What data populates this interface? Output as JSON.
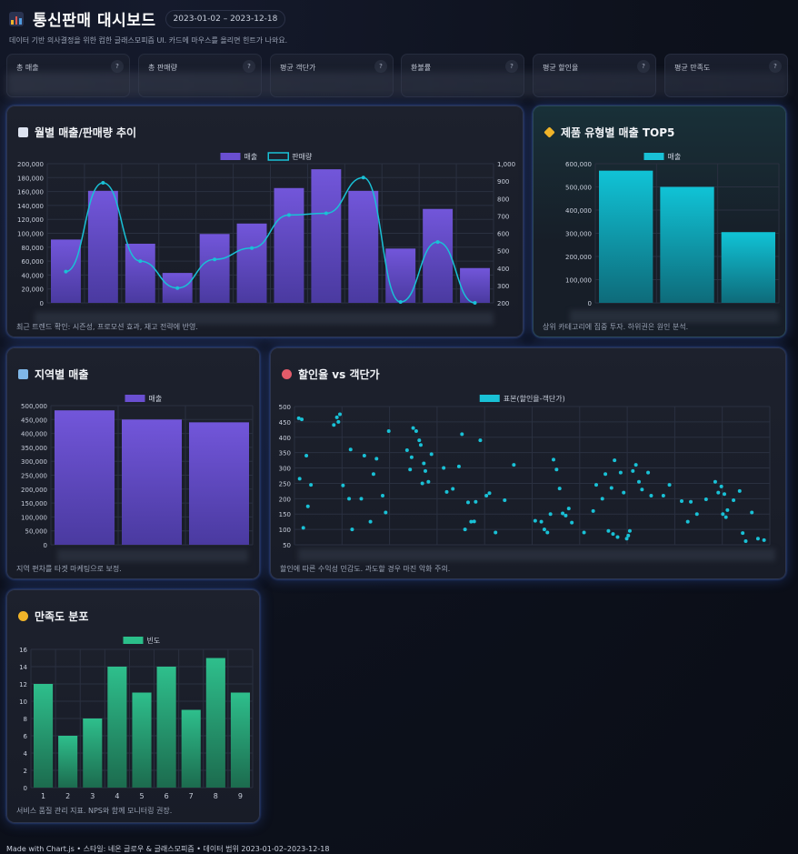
{
  "header": {
    "title": "통신판매 대시보드",
    "date_range": "2023-01-02 – 2023-12-18",
    "subtitle": "데이터 기반 의사결정을 위한 컴한 글래스모피즘 UI. 카드에 마우스를 올리면 힌트가 나와요."
  },
  "kpis": [
    {
      "label": "총 매출",
      "help": "?"
    },
    {
      "label": "총 판매량",
      "help": "?"
    },
    {
      "label": "평균 객단가",
      "help": "?"
    },
    {
      "label": "환불률",
      "help": "?"
    },
    {
      "label": "평균 할인율",
      "help": "?"
    },
    {
      "label": "평균 만족도",
      "help": "?"
    }
  ],
  "colors": {
    "purple": "#6a4fd1",
    "cyan": "#19c1d6",
    "green": "#2bbf8a",
    "accent_glow": "#3f6ee6"
  },
  "cards": {
    "monthly": {
      "title": "월별 매출/판매량 추이",
      "icon": "chart-increasing-icon",
      "note": "최근 트렌드 확인: 시즌성, 프로모션 효과, 재고 전략에 반영."
    },
    "top5": {
      "title": "제품 유형별 매출 TOP5",
      "icon": "tag-icon",
      "note": "상위 카테고리에 집중 투자. 하위권은 원인 분석."
    },
    "region": {
      "title": "지역별 매출",
      "icon": "map-icon",
      "note": "지역 편차를 타겟 마케팅으로 보정."
    },
    "scatter": {
      "title": "할인율 vs 객단가",
      "icon": "target-icon",
      "note": "할인에 따른 수익성 민감도. 과도할 경우 마진 악화 주의."
    },
    "satisfaction": {
      "title": "만족도 분포",
      "icon": "smile-icon",
      "note": "서비스 품질 관리 지표. NPS와 함께 모니터링 권장."
    }
  },
  "footer": "Made with Chart.js • 스타일: 네온 글로우 & 글래스모피즘 • 데이터 범위 2023-01-02–2023-12-18",
  "chart_data": [
    {
      "id": "monthly",
      "type": "bar+line",
      "series": [
        {
          "name": "매출",
          "type": "bar",
          "axis": "left",
          "values": [
            91000,
            161000,
            85000,
            43000,
            99000,
            114000,
            165000,
            192000,
            161000,
            78000,
            135000,
            50000
          ]
        },
        {
          "name": "판매량",
          "type": "line",
          "axis": "right",
          "values": [
            380,
            890,
            440,
            285,
            450,
            515,
            705,
            715,
            920,
            205,
            550,
            200
          ]
        }
      ],
      "ylim": [
        0,
        200000
      ],
      "yticks": [
        0,
        20000,
        40000,
        60000,
        80000,
        100000,
        120000,
        140000,
        160000,
        180000,
        200000
      ],
      "y2lim": [
        200,
        1000
      ],
      "y2ticks": [
        200,
        300,
        400,
        500,
        600,
        700,
        800,
        900,
        1000
      ],
      "legend": "top"
    },
    {
      "id": "top5",
      "type": "bar",
      "series": [
        {
          "name": "매출",
          "values": [
            570000,
            500000,
            305000
          ]
        }
      ],
      "ylim": [
        0,
        600000
      ],
      "yticks": [
        0,
        100000,
        200000,
        300000,
        400000,
        500000,
        600000
      ],
      "legend": "top"
    },
    {
      "id": "region",
      "type": "bar",
      "series": [
        {
          "name": "매출",
          "values": [
            483000,
            450000,
            440000
          ]
        }
      ],
      "ylim": [
        0,
        500000
      ],
      "yticks": [
        0,
        50000,
        100000,
        150000,
        200000,
        250000,
        300000,
        350000,
        400000,
        450000,
        500000
      ],
      "legend": "top"
    },
    {
      "id": "scatter",
      "type": "scatter",
      "series": [
        {
          "name": "표본(할인율-객단가)",
          "points": [
            [
              0.5,
              462
            ],
            [
              1.5,
              458
            ],
            [
              0.8,
              265
            ],
            [
              2,
              105
            ],
            [
              3,
              340
            ],
            [
              3.5,
              175
            ],
            [
              4.5,
              245
            ],
            [
              12,
              440
            ],
            [
              13,
              465
            ],
            [
              13.5,
              450
            ],
            [
              14,
              475
            ],
            [
              15,
              243
            ],
            [
              17,
              200
            ],
            [
              17.5,
              360
            ],
            [
              18,
              100
            ],
            [
              21,
              200
            ],
            [
              22,
              340
            ],
            [
              24,
              125
            ],
            [
              25,
              280
            ],
            [
              26,
              330
            ],
            [
              28,
              210
            ],
            [
              29,
              155
            ],
            [
              30,
              420
            ],
            [
              36,
              358
            ],
            [
              37,
              295
            ],
            [
              37.5,
              335
            ],
            [
              38,
              430
            ],
            [
              39,
              420
            ],
            [
              40,
              390
            ],
            [
              40.5,
              375
            ],
            [
              41,
              250
            ],
            [
              41.5,
              315
            ],
            [
              42,
              290
            ],
            [
              43,
              255
            ],
            [
              44,
              345
            ],
            [
              48,
              300
            ],
            [
              49,
              222
            ],
            [
              51,
              232
            ],
            [
              53,
              305
            ],
            [
              54,
              410
            ],
            [
              55,
              100
            ],
            [
              56,
              188
            ],
            [
              57,
              125
            ],
            [
              58,
              126
            ],
            [
              58.5,
              190
            ],
            [
              60,
              390
            ],
            [
              62,
              210
            ],
            [
              63,
              218
            ],
            [
              65,
              90
            ],
            [
              68,
              195
            ],
            [
              71,
              310
            ],
            [
              78,
              128
            ],
            [
              80,
              125
            ],
            [
              81,
              100
            ],
            [
              82,
              90
            ],
            [
              83,
              150
            ],
            [
              84,
              327
            ],
            [
              85,
              295
            ],
            [
              86,
              233
            ],
            [
              87,
              152
            ],
            [
              88,
              145
            ],
            [
              89,
              168
            ],
            [
              90,
              122
            ],
            [
              94,
              90
            ],
            [
              97,
              160
            ],
            [
              98,
              245
            ],
            [
              100,
              200
            ],
            [
              101,
              280
            ],
            [
              102,
              95
            ],
            [
              103,
              235
            ],
            [
              103.5,
              85
            ],
            [
              104,
              325
            ],
            [
              105,
              75
            ],
            [
              106,
              285
            ],
            [
              107,
              220
            ],
            [
              108,
              70
            ],
            [
              108.5,
              80
            ],
            [
              109,
              95
            ],
            [
              110,
              290
            ],
            [
              111,
              310
            ],
            [
              112,
              255
            ],
            [
              113,
              230
            ],
            [
              115,
              285
            ],
            [
              116,
              210
            ],
            [
              120,
              210
            ],
            [
              122,
              245
            ],
            [
              126,
              192
            ],
            [
              128,
              125
            ],
            [
              129,
              190
            ],
            [
              131,
              150
            ],
            [
              134,
              198
            ],
            [
              137,
              255
            ],
            [
              138,
              220
            ],
            [
              139,
              240
            ],
            [
              139.5,
              150
            ],
            [
              140,
              215
            ],
            [
              140.5,
              140
            ],
            [
              141,
              163
            ],
            [
              143,
              195
            ],
            [
              145,
              225
            ],
            [
              146,
              88
            ],
            [
              147,
              62
            ],
            [
              149,
              155
            ],
            [
              151,
              70
            ],
            [
              153,
              65
            ]
          ]
        }
      ],
      "ylim": [
        50,
        500
      ],
      "yticks": [
        50,
        100,
        150,
        200,
        250,
        300,
        350,
        400,
        450,
        500
      ],
      "legend": "top"
    },
    {
      "id": "satisfaction",
      "type": "bar",
      "categories": [
        "1",
        "2",
        "3",
        "4",
        "5",
        "6",
        "7",
        "8",
        "9"
      ],
      "series": [
        {
          "name": "빈도",
          "values": [
            12,
            6,
            8,
            14,
            11,
            14,
            9,
            15,
            11
          ]
        }
      ],
      "ylim": [
        0,
        16
      ],
      "yticks": [
        0,
        2,
        4,
        6,
        8,
        10,
        12,
        14,
        16
      ],
      "legend": "top"
    }
  ]
}
